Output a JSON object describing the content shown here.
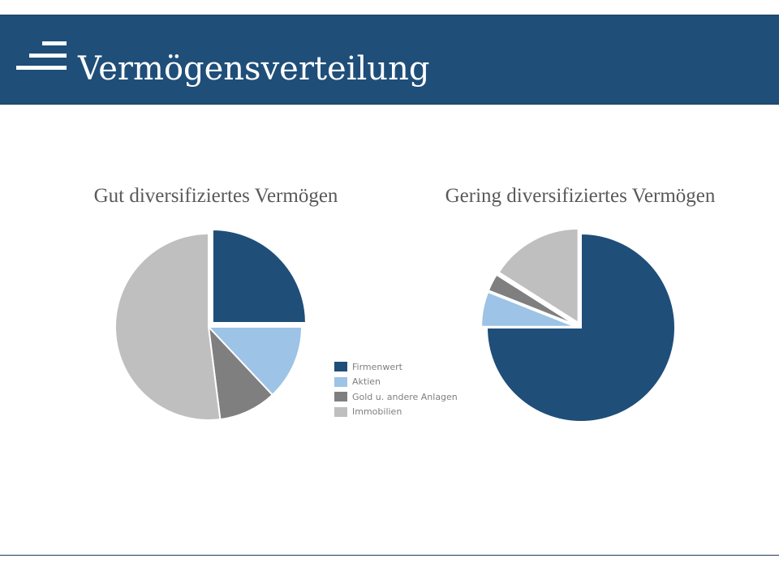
{
  "header": {
    "title": "Vermögensverteilung",
    "icon": "hamburger-lines-icon",
    "background": "#1f4e79"
  },
  "legend": {
    "items": [
      {
        "label": "Firmenwert",
        "color": "#1f4e79"
      },
      {
        "label": "Aktien",
        "color": "#9dc3e6"
      },
      {
        "label": "Gold u. andere Anlagen",
        "color": "#7f7f7f"
      },
      {
        "label": "Immobilien",
        "color": "#bfbfbf"
      }
    ]
  },
  "chart_data": [
    {
      "type": "pie",
      "title": "Gut diversifiziertes Vermögen",
      "categories": [
        "Firmenwert",
        "Aktien",
        "Gold u. andere Anlagen",
        "Immobilien"
      ],
      "values": [
        25,
        13,
        10,
        52
      ],
      "colors": [
        "#1f4e79",
        "#9dc3e6",
        "#7f7f7f",
        "#bfbfbf"
      ],
      "exploded": [
        "Firmenwert"
      ],
      "legend": "right"
    },
    {
      "type": "pie",
      "title": "Gering diversifiziertes Vermögen",
      "categories": [
        "Firmenwert",
        "Aktien",
        "Gold u. andere Anlagen",
        "Immobilien"
      ],
      "values": [
        75,
        6,
        3,
        16
      ],
      "colors": [
        "#1f4e79",
        "#9dc3e6",
        "#7f7f7f",
        "#bfbfbf"
      ],
      "exploded": [
        "Aktien",
        "Gold u. andere Anlagen",
        "Immobilien"
      ],
      "legend": "none"
    }
  ]
}
